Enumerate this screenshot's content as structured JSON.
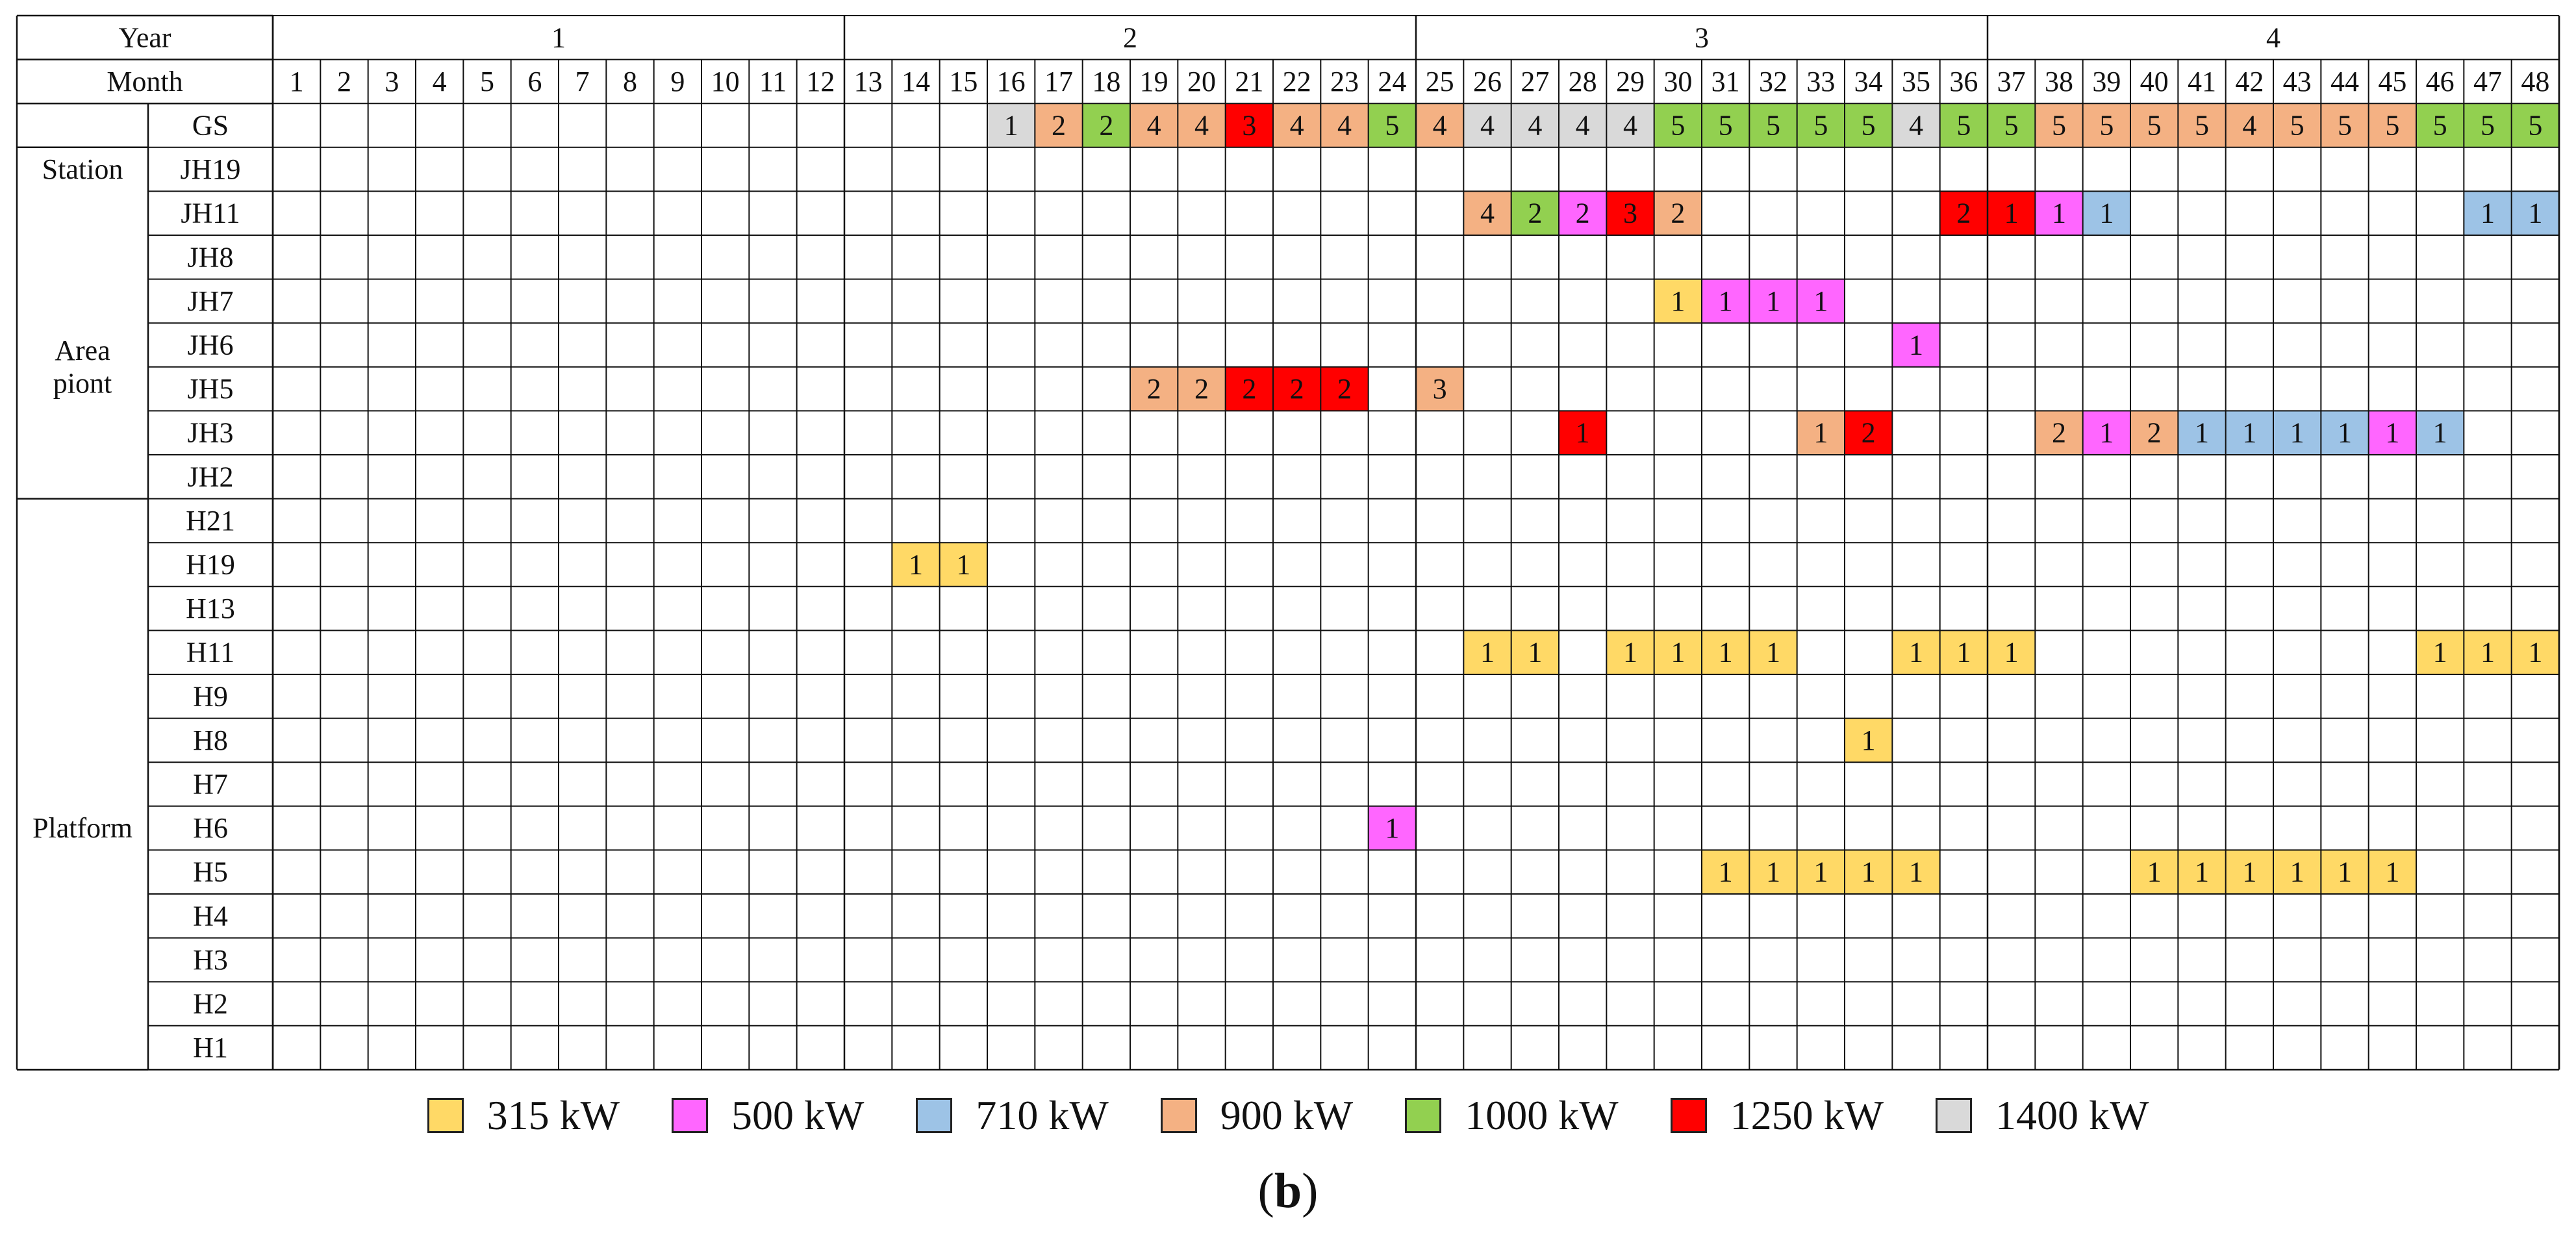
{
  "chart_data": {
    "type": "table",
    "title": "",
    "row_header_label": "Year",
    "month_header_label": "Month",
    "years": [
      "1",
      "2",
      "3",
      "4"
    ],
    "months": [
      "1",
      "2",
      "3",
      "4",
      "5",
      "6",
      "7",
      "8",
      "9",
      "10",
      "11",
      "12",
      "13",
      "14",
      "15",
      "16",
      "17",
      "18",
      "19",
      "20",
      "21",
      "22",
      "23",
      "24",
      "25",
      "26",
      "27",
      "28",
      "29",
      "30",
      "31",
      "32",
      "33",
      "34",
      "35",
      "36",
      "37",
      "38",
      "39",
      "40",
      "41",
      "42",
      "43",
      "44",
      "45",
      "46",
      "47",
      "48"
    ],
    "groups": [
      {
        "label": "Station",
        "rows": [
          "GS"
        ]
      },
      {
        "label": "Area\npiont",
        "rows": [
          "JH19",
          "JH11",
          "JH8",
          "JH7",
          "JH6",
          "JH5",
          "JH3",
          "JH2"
        ]
      },
      {
        "label": "Platform",
        "rows": [
          "H21",
          "H19",
          "H13",
          "H11",
          "H9",
          "H8",
          "H7",
          "H6",
          "H5",
          "H4",
          "H3",
          "H2",
          "H1"
        ]
      }
    ],
    "capacities": [
      {
        "key": "315",
        "label": "315 kW",
        "color": "#FFD966"
      },
      {
        "key": "500",
        "label": "500 kW",
        "color": "#FF66FF"
      },
      {
        "key": "710",
        "label": "710 kW",
        "color": "#9DC3E6"
      },
      {
        "key": "900",
        "label": "900 kW",
        "color": "#F4B183"
      },
      {
        "key": "1000",
        "label": "1000 kW",
        "color": "#92D050"
      },
      {
        "key": "1250",
        "label": "1250 kW",
        "color": "#FF0000"
      },
      {
        "key": "1400",
        "label": "1400 kW",
        "color": "#D9D9D9"
      }
    ],
    "cells": [
      {
        "row": "GS",
        "month": 16,
        "value": "1",
        "cap": "1400"
      },
      {
        "row": "GS",
        "month": 17,
        "value": "2",
        "cap": "900"
      },
      {
        "row": "GS",
        "month": 18,
        "value": "2",
        "cap": "1000"
      },
      {
        "row": "GS",
        "month": 19,
        "value": "4",
        "cap": "900"
      },
      {
        "row": "GS",
        "month": 20,
        "value": "4",
        "cap": "900"
      },
      {
        "row": "GS",
        "month": 21,
        "value": "3",
        "cap": "1250"
      },
      {
        "row": "GS",
        "month": 22,
        "value": "4",
        "cap": "900"
      },
      {
        "row": "GS",
        "month": 23,
        "value": "4",
        "cap": "900"
      },
      {
        "row": "GS",
        "month": 24,
        "value": "5",
        "cap": "1000"
      },
      {
        "row": "GS",
        "month": 25,
        "value": "4",
        "cap": "900"
      },
      {
        "row": "GS",
        "month": 26,
        "value": "4",
        "cap": "1400"
      },
      {
        "row": "GS",
        "month": 27,
        "value": "4",
        "cap": "1400"
      },
      {
        "row": "GS",
        "month": 28,
        "value": "4",
        "cap": "1400"
      },
      {
        "row": "GS",
        "month": 29,
        "value": "4",
        "cap": "1400"
      },
      {
        "row": "GS",
        "month": 30,
        "value": "5",
        "cap": "1000"
      },
      {
        "row": "GS",
        "month": 31,
        "value": "5",
        "cap": "1000"
      },
      {
        "row": "GS",
        "month": 32,
        "value": "5",
        "cap": "1000"
      },
      {
        "row": "GS",
        "month": 33,
        "value": "5",
        "cap": "1000"
      },
      {
        "row": "GS",
        "month": 34,
        "value": "5",
        "cap": "1000"
      },
      {
        "row": "GS",
        "month": 35,
        "value": "4",
        "cap": "1400"
      },
      {
        "row": "GS",
        "month": 36,
        "value": "5",
        "cap": "1000"
      },
      {
        "row": "GS",
        "month": 37,
        "value": "5",
        "cap": "1000"
      },
      {
        "row": "GS",
        "month": 38,
        "value": "5",
        "cap": "900"
      },
      {
        "row": "GS",
        "month": 39,
        "value": "5",
        "cap": "900"
      },
      {
        "row": "GS",
        "month": 40,
        "value": "5",
        "cap": "900"
      },
      {
        "row": "GS",
        "month": 41,
        "value": "5",
        "cap": "900"
      },
      {
        "row": "GS",
        "month": 42,
        "value": "4",
        "cap": "900"
      },
      {
        "row": "GS",
        "month": 43,
        "value": "5",
        "cap": "900"
      },
      {
        "row": "GS",
        "month": 44,
        "value": "5",
        "cap": "900"
      },
      {
        "row": "GS",
        "month": 45,
        "value": "5",
        "cap": "900"
      },
      {
        "row": "GS",
        "month": 46,
        "value": "5",
        "cap": "1000"
      },
      {
        "row": "GS",
        "month": 47,
        "value": "5",
        "cap": "1000"
      },
      {
        "row": "GS",
        "month": 48,
        "value": "5",
        "cap": "1000"
      },
      {
        "row": "JH11",
        "month": 26,
        "value": "4",
        "cap": "900"
      },
      {
        "row": "JH11",
        "month": 27,
        "value": "2",
        "cap": "1000"
      },
      {
        "row": "JH11",
        "month": 28,
        "value": "2",
        "cap": "500"
      },
      {
        "row": "JH11",
        "month": 29,
        "value": "3",
        "cap": "1250"
      },
      {
        "row": "JH11",
        "month": 30,
        "value": "2",
        "cap": "900"
      },
      {
        "row": "JH11",
        "month": 36,
        "value": "2",
        "cap": "1250"
      },
      {
        "row": "JH11",
        "month": 37,
        "value": "1",
        "cap": "1250"
      },
      {
        "row": "JH11",
        "month": 38,
        "value": "1",
        "cap": "500"
      },
      {
        "row": "JH11",
        "month": 39,
        "value": "1",
        "cap": "710"
      },
      {
        "row": "JH11",
        "month": 47,
        "value": "1",
        "cap": "710"
      },
      {
        "row": "JH11",
        "month": 48,
        "value": "1",
        "cap": "710"
      },
      {
        "row": "JH7",
        "month": 30,
        "value": "1",
        "cap": "315"
      },
      {
        "row": "JH7",
        "month": 31,
        "value": "1",
        "cap": "500"
      },
      {
        "row": "JH7",
        "month": 32,
        "value": "1",
        "cap": "500"
      },
      {
        "row": "JH7",
        "month": 33,
        "value": "1",
        "cap": "500"
      },
      {
        "row": "JH6",
        "month": 35,
        "value": "1",
        "cap": "500"
      },
      {
        "row": "JH5",
        "month": 19,
        "value": "2",
        "cap": "900"
      },
      {
        "row": "JH5",
        "month": 20,
        "value": "2",
        "cap": "900"
      },
      {
        "row": "JH5",
        "month": 21,
        "value": "2",
        "cap": "1250"
      },
      {
        "row": "JH5",
        "month": 22,
        "value": "2",
        "cap": "1250"
      },
      {
        "row": "JH5",
        "month": 23,
        "value": "2",
        "cap": "1250"
      },
      {
        "row": "JH5",
        "month": 25,
        "value": "3",
        "cap": "900"
      },
      {
        "row": "JH3",
        "month": 28,
        "value": "1",
        "cap": "1250"
      },
      {
        "row": "JH3",
        "month": 33,
        "value": "1",
        "cap": "900"
      },
      {
        "row": "JH3",
        "month": 34,
        "value": "2",
        "cap": "1250"
      },
      {
        "row": "JH3",
        "month": 38,
        "value": "2",
        "cap": "900"
      },
      {
        "row": "JH3",
        "month": 39,
        "value": "1",
        "cap": "500"
      },
      {
        "row": "JH3",
        "month": 40,
        "value": "2",
        "cap": "900"
      },
      {
        "row": "JH3",
        "month": 41,
        "value": "1",
        "cap": "710"
      },
      {
        "row": "JH3",
        "month": 42,
        "value": "1",
        "cap": "710"
      },
      {
        "row": "JH3",
        "month": 43,
        "value": "1",
        "cap": "710"
      },
      {
        "row": "JH3",
        "month": 44,
        "value": "1",
        "cap": "710"
      },
      {
        "row": "JH3",
        "month": 45,
        "value": "1",
        "cap": "500"
      },
      {
        "row": "JH3",
        "month": 46,
        "value": "1",
        "cap": "710"
      },
      {
        "row": "H19",
        "month": 14,
        "value": "1",
        "cap": "315"
      },
      {
        "row": "H19",
        "month": 15,
        "value": "1",
        "cap": "315"
      },
      {
        "row": "H11",
        "month": 26,
        "value": "1",
        "cap": "315"
      },
      {
        "row": "H11",
        "month": 27,
        "value": "1",
        "cap": "315"
      },
      {
        "row": "H11",
        "month": 29,
        "value": "1",
        "cap": "315"
      },
      {
        "row": "H11",
        "month": 30,
        "value": "1",
        "cap": "315"
      },
      {
        "row": "H11",
        "month": 31,
        "value": "1",
        "cap": "315"
      },
      {
        "row": "H11",
        "month": 32,
        "value": "1",
        "cap": "315"
      },
      {
        "row": "H11",
        "month": 35,
        "value": "1",
        "cap": "315"
      },
      {
        "row": "H11",
        "month": 36,
        "value": "1",
        "cap": "315"
      },
      {
        "row": "H11",
        "month": 37,
        "value": "1",
        "cap": "315"
      },
      {
        "row": "H11",
        "month": 46,
        "value": "1",
        "cap": "315"
      },
      {
        "row": "H11",
        "month": 47,
        "value": "1",
        "cap": "315"
      },
      {
        "row": "H11",
        "month": 48,
        "value": "1",
        "cap": "315"
      },
      {
        "row": "H8",
        "month": 34,
        "value": "1",
        "cap": "315"
      },
      {
        "row": "H6",
        "month": 24,
        "value": "1",
        "cap": "500"
      },
      {
        "row": "H5",
        "month": 31,
        "value": "1",
        "cap": "315"
      },
      {
        "row": "H5",
        "month": 32,
        "value": "1",
        "cap": "315"
      },
      {
        "row": "H5",
        "month": 33,
        "value": "1",
        "cap": "315"
      },
      {
        "row": "H5",
        "month": 34,
        "value": "1",
        "cap": "315"
      },
      {
        "row": "H5",
        "month": 35,
        "value": "1",
        "cap": "315"
      },
      {
        "row": "H5",
        "month": 40,
        "value": "1",
        "cap": "315"
      },
      {
        "row": "H5",
        "month": 41,
        "value": "1",
        "cap": "315"
      },
      {
        "row": "H5",
        "month": 42,
        "value": "1",
        "cap": "315"
      },
      {
        "row": "H5",
        "month": 43,
        "value": "1",
        "cap": "315"
      },
      {
        "row": "H5",
        "month": 44,
        "value": "1",
        "cap": "315"
      },
      {
        "row": "H5",
        "month": 45,
        "value": "1",
        "cap": "315"
      }
    ]
  },
  "caption": {
    "open": "(",
    "letter": "b",
    "close": ")"
  }
}
